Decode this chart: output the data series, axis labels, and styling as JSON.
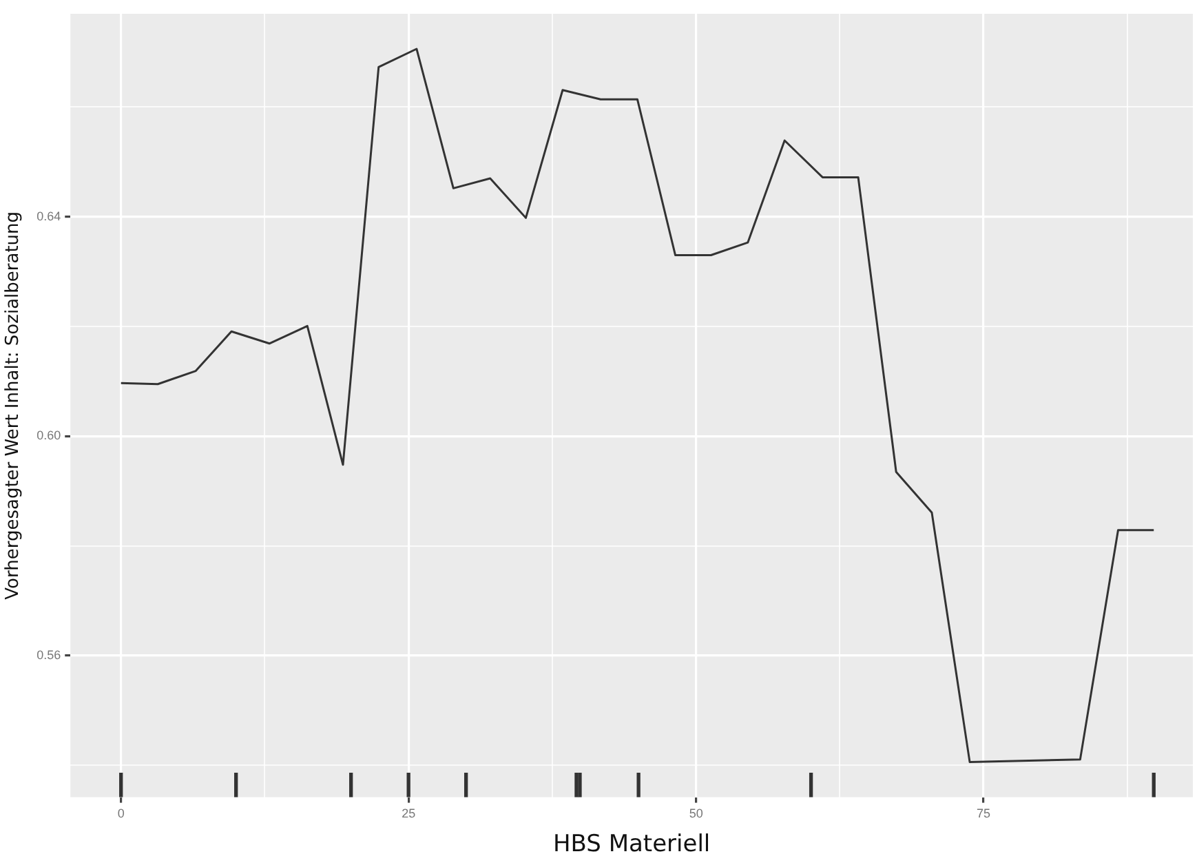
{
  "chart_data": {
    "type": "line",
    "xlabel": "HBS Materiell",
    "ylabel": "Vorhergesagter Wert Inhalt: Sozialberatung",
    "xlim": [
      -4.4,
      93.2
    ],
    "ylim": [
      0.5342,
      0.677
    ],
    "xticks": [
      0,
      {
        "value": 12.5,
        "label": null
      },
      25,
      {
        "value": 37.5,
        "label": null
      },
      50,
      {
        "value": 62.5,
        "label": null
      },
      75,
      {
        "value": 87.5,
        "label": null
      }
    ],
    "yticks": [
      {
        "value": 0.54,
        "label": null
      },
      {
        "value": 0.56,
        "label": "0.56"
      },
      {
        "value": 0.58,
        "label": null
      },
      {
        "value": 0.6,
        "label": "0.60"
      },
      {
        "value": 0.62,
        "label": null
      },
      {
        "value": 0.64,
        "label": "0.64"
      },
      {
        "value": 0.66,
        "label": null
      }
    ],
    "grid": true,
    "legend": false,
    "marker": "none",
    "line_style": "solid",
    "series": [
      {
        "color": "#333333",
        "x": [
          0,
          3.2,
          6.5,
          9.6,
          12.9,
          16.2,
          19.3,
          22.4,
          25.7,
          28.9,
          32.1,
          35.2,
          38.4,
          41.7,
          44.9,
          48.2,
          51.3,
          54.5,
          57.7,
          61.0,
          64.1,
          67.4,
          70.5,
          73.8,
          83.4,
          86.7,
          89.8
        ],
        "values": [
          0.6097,
          0.6095,
          0.6119,
          0.6191,
          0.6169,
          0.6201,
          0.5948,
          0.6673,
          0.6706,
          0.6452,
          0.647,
          0.6398,
          0.6631,
          0.6614,
          0.6614,
          0.633,
          0.633,
          0.6353,
          0.6539,
          0.6472,
          0.6472,
          0.5935,
          0.5861,
          0.5406,
          0.5411,
          0.5829,
          0.5829
        ]
      },
      {
        "type": "bar",
        "color": "#333333",
        "x": [
          0,
          10,
          20,
          25,
          30,
          39.6,
          39.9,
          45,
          60,
          89.8
        ],
        "base": [
          0.5342,
          0.5342,
          0.5342,
          0.5342,
          0.5342,
          0.5342,
          0.5342,
          0.5342,
          0.5342,
          0.5342
        ],
        "values": [
          0.0044,
          0.0044,
          0.0044,
          0.0044,
          0.0044,
          0.0044,
          0.0044,
          0.0044,
          0.0044,
          0.0044
        ]
      }
    ]
  }
}
